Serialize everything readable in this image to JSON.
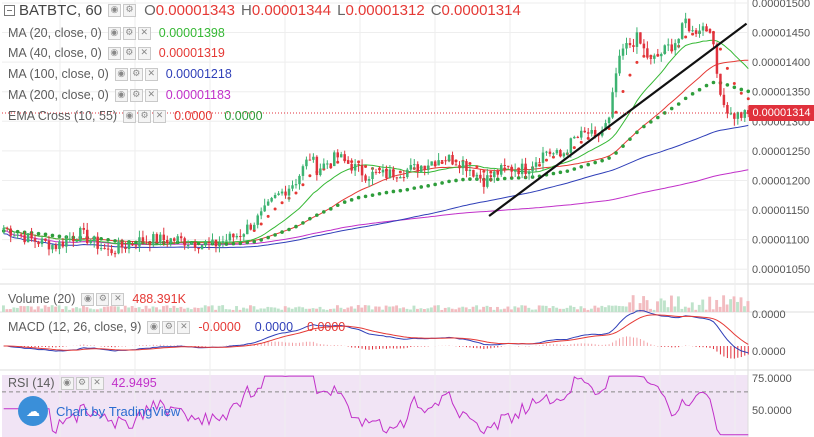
{
  "header": {
    "symbol": "BATBTC, 60",
    "ohlc": [
      {
        "key": "O",
        "value": "0.00001343"
      },
      {
        "key": "H",
        "value": "0.00001344"
      },
      {
        "key": "L",
        "value": "0.00001312"
      },
      {
        "key": "C",
        "value": "0.00001314"
      }
    ]
  },
  "indicators": [
    {
      "label": "MA (20, close, 0)",
      "value": "0.00001398",
      "color": "#35b834"
    },
    {
      "label": "MA (40, close, 0)",
      "value": "0.00001319",
      "color": "#e53935"
    },
    {
      "label": "MA (100, close, 0)",
      "value": "0.00001218",
      "color": "#2f3fb8"
    },
    {
      "label": "MA (200, close, 0)",
      "value": "0.00001183",
      "color": "#c130c9"
    },
    {
      "label": "EMA Cross (10, 55)",
      "value": "0.0000",
      "value2": "0.0000",
      "color": "#e53935",
      "color2": "#2e9d3b"
    }
  ],
  "volume": {
    "label": "Volume (20)",
    "value": "488.391K",
    "color": "#e53935"
  },
  "macd": {
    "label": "MACD (12, 26, close, 9)",
    "values": [
      "-0.0000",
      "0.0000",
      "0.0000"
    ],
    "colors": [
      "#e53935",
      "#2f3fb8",
      "#e53935"
    ]
  },
  "rsi": {
    "label": "RSI (14)",
    "value": "42.9495",
    "color": "#c130c9"
  },
  "price_tag": "0.00001314",
  "branding": {
    "prefix": "Chart by ",
    "brand": "TradingView"
  },
  "colors": {
    "up": "#3cb371",
    "down": "#e0313c",
    "grid": "#eeeeee"
  },
  "chart_data": {
    "type": "candlestick",
    "symbol": "BATBTC",
    "interval": "60",
    "price_axis": {
      "ticks": [
        "0.00001500",
        "0.00001450",
        "0.00001400",
        "0.00001350",
        "0.00001300",
        "0.00001250",
        "0.00001200",
        "0.00001150",
        "0.00001100",
        "0.00001050"
      ],
      "range": [
        1.025e-05,
        1.505e-05
      ]
    },
    "macd_axis": {
      "ticks": [
        "0.0000",
        "0.0000"
      ]
    },
    "rsi_axis": {
      "ticks": [
        "75.0000",
        "50.0000"
      ],
      "bands": [
        70,
        30
      ]
    },
    "anchors_close": [
      [
        0,
        1.12
      ],
      [
        8,
        1.1
      ],
      [
        15,
        1.09
      ],
      [
        22,
        1.11
      ],
      [
        30,
        1.08
      ],
      [
        40,
        1.1
      ],
      [
        50,
        1.1
      ],
      [
        60,
        1.09
      ],
      [
        68,
        1.11
      ],
      [
        74,
        1.14
      ],
      [
        78,
        1.17
      ],
      [
        84,
        1.2
      ],
      [
        88,
        1.24
      ],
      [
        90,
        1.22
      ],
      [
        96,
        1.24
      ],
      [
        104,
        1.21
      ],
      [
        110,
        1.21
      ],
      [
        118,
        1.22
      ],
      [
        126,
        1.24
      ],
      [
        132,
        1.23
      ],
      [
        138,
        1.2
      ],
      [
        144,
        1.22
      ],
      [
        150,
        1.22
      ],
      [
        156,
        1.25
      ],
      [
        160,
        1.24
      ],
      [
        164,
        1.27
      ],
      [
        168,
        1.28
      ],
      [
        170,
        1.27
      ],
      [
        174,
        1.3
      ],
      [
        176,
        1.38
      ],
      [
        178,
        1.42
      ],
      [
        182,
        1.44
      ],
      [
        186,
        1.4
      ],
      [
        190,
        1.42
      ],
      [
        194,
        1.44
      ],
      [
        196,
        1.47
      ],
      [
        198,
        1.45
      ],
      [
        200,
        1.46
      ],
      [
        203,
        1.46
      ],
      [
        205,
        1.38
      ],
      [
        207,
        1.33
      ],
      [
        209,
        1.31
      ]
    ],
    "trend_line": {
      "from": {
        "bar": 140,
        "price": 1.14
      },
      "to": {
        "bar": 214,
        "price": 1.465
      }
    },
    "current_price": 1.314e-05
  }
}
